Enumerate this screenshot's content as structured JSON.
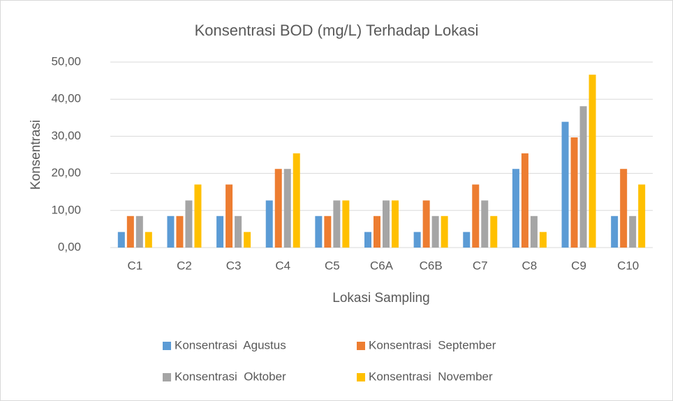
{
  "chart_data": {
    "type": "bar",
    "title": "Konsentrasi BOD (mg/L) Terhadap Lokasi",
    "x_label": "Lokasi Sampling",
    "y_label": "Konsentrasi",
    "categories": [
      "C1",
      "C2",
      "C3",
      "C4",
      "C5",
      "C6A",
      "C6B",
      "C7",
      "C8",
      "C9",
      "C10"
    ],
    "series": [
      {
        "name": "Konsentrasi  Agustus",
        "color": "#5b9bd5",
        "values": [
          4.2,
          8.5,
          8.5,
          12.7,
          8.5,
          4.2,
          4.2,
          4.2,
          21.2,
          33.9,
          8.5
        ]
      },
      {
        "name": "Konsentrasi  September",
        "color": "#ed7d31",
        "values": [
          8.5,
          8.5,
          17.0,
          21.2,
          8.5,
          8.5,
          12.7,
          17.0,
          25.4,
          29.7,
          21.2
        ]
      },
      {
        "name": "Konsentrasi  Oktober",
        "color": "#a5a5a5",
        "values": [
          8.5,
          12.7,
          8.5,
          21.2,
          12.7,
          12.7,
          8.5,
          12.7,
          8.5,
          38.1,
          8.5
        ]
      },
      {
        "name": "Konsentrasi  November",
        "color": "#ffc000",
        "values": [
          4.2,
          17.0,
          4.2,
          25.4,
          12.7,
          12.7,
          8.5,
          8.5,
          4.2,
          46.6,
          17.0
        ]
      }
    ],
    "ylim": [
      0,
      50
    ],
    "yticks": [
      {
        "value": 0,
        "label": "0,00"
      },
      {
        "value": 10,
        "label": "10,00"
      },
      {
        "value": 20,
        "label": "20,00"
      },
      {
        "value": 30,
        "label": "30,00"
      },
      {
        "value": 40,
        "label": "40,00"
      },
      {
        "value": 50,
        "label": "50,00"
      }
    ],
    "grid": true,
    "legend": "bottom"
  }
}
